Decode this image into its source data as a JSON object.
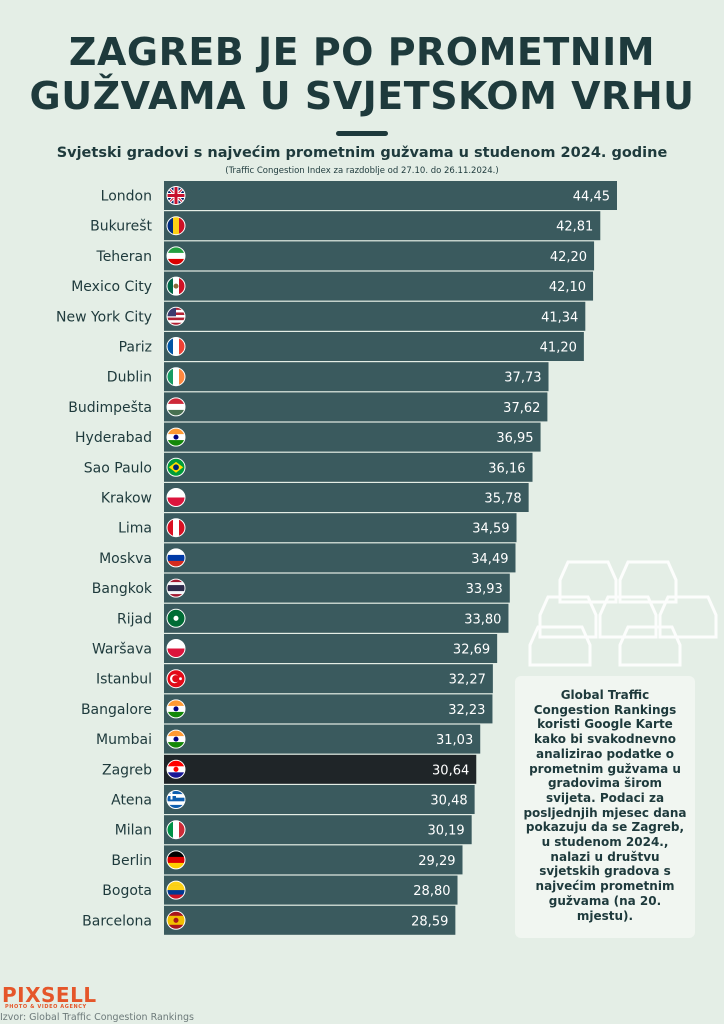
{
  "header": {
    "title_line1": "ZAGREB JE PO PROMETNIM",
    "title_line2": "GUŽVAMA U SVJETSKOM VRHU",
    "subtitle": "Svjetski gradovi s najvećim prometnim gužvama u studenom 2024. godine",
    "note": "(Traffic Congestion Index za razdoblje od 27.10. do 26.11.2024.)"
  },
  "colors": {
    "bar": "#3a5a5e",
    "bar_highlight": "#1f2528",
    "text": "#1e3a3c",
    "background": "#e4eee6"
  },
  "chart_data": {
    "type": "bar",
    "orientation": "horizontal",
    "title": "Svjetski gradovi s najvećim prometnim gužvama u studenom 2024. godine",
    "xlabel": "",
    "ylabel": "",
    "xlim": [
      0,
      44.45
    ],
    "highlight": "Zagreb",
    "categories": [
      "London",
      "Bukurešt",
      "Teheran",
      "Mexico City",
      "New York City",
      "Pariz",
      "Dublin",
      "Budimpešta",
      "Hyderabad",
      "Sao Paulo",
      "Krakow",
      "Lima",
      "Moskva",
      "Bangkok",
      "Rijad",
      "Waršava",
      "Istanbul",
      "Bangalore",
      "Mumbai",
      "Zagreb",
      "Atena",
      "Milan",
      "Berlin",
      "Bogota",
      "Barcelona"
    ],
    "values": [
      44.45,
      42.81,
      42.2,
      42.1,
      41.34,
      41.2,
      37.73,
      37.62,
      36.95,
      36.16,
      35.78,
      34.59,
      34.49,
      33.93,
      33.8,
      32.69,
      32.27,
      32.23,
      31.03,
      30.64,
      30.48,
      30.19,
      29.29,
      28.8,
      28.59
    ],
    "value_labels": [
      "44,45",
      "42,81",
      "42,20",
      "42,10",
      "41,34",
      "41,20",
      "37,73",
      "37,62",
      "36,95",
      "36,16",
      "35,78",
      "34,59",
      "34,49",
      "33,93",
      "33,80",
      "32,69",
      "32,27",
      "32,23",
      "31,03",
      "30,64",
      "30,48",
      "30,19",
      "29,29",
      "28,80",
      "28,59"
    ],
    "flags": [
      "uk-flag-icon",
      "romania-flag-icon",
      "iran-flag-icon",
      "mexico-flag-icon",
      "usa-flag-icon",
      "france-flag-icon",
      "ireland-flag-icon",
      "hungary-flag-icon",
      "india-flag-icon",
      "brazil-flag-icon",
      "poland-flag-icon",
      "peru-flag-icon",
      "russia-flag-icon",
      "thailand-flag-icon",
      "saudi-arabia-flag-icon",
      "poland-flag-icon",
      "turkey-flag-icon",
      "india-flag-icon",
      "india-flag-icon",
      "croatia-flag-icon",
      "greece-flag-icon",
      "italy-flag-icon",
      "germany-flag-icon",
      "colombia-flag-icon",
      "spain-flag-icon"
    ]
  },
  "info_box": {
    "text": "Global Traffic Congestion Rankings koristi Google Karte kako bi svakodnevno analizirao podatke o prometnim gužvama u gradovima širom svijeta. Podaci za posljednjih mjesec dana pokazuju da se Zagreb, u studenom 2024., nalazi u društvu svjetskih gradova s najvećim prometnim gužvama (na 20. mjestu)."
  },
  "footer": {
    "logo": "PIXSELL",
    "logo_sub": "PHOTO & VIDEO AGENCY",
    "source": "Izvor: Global Traffic Congestion Rankings"
  }
}
